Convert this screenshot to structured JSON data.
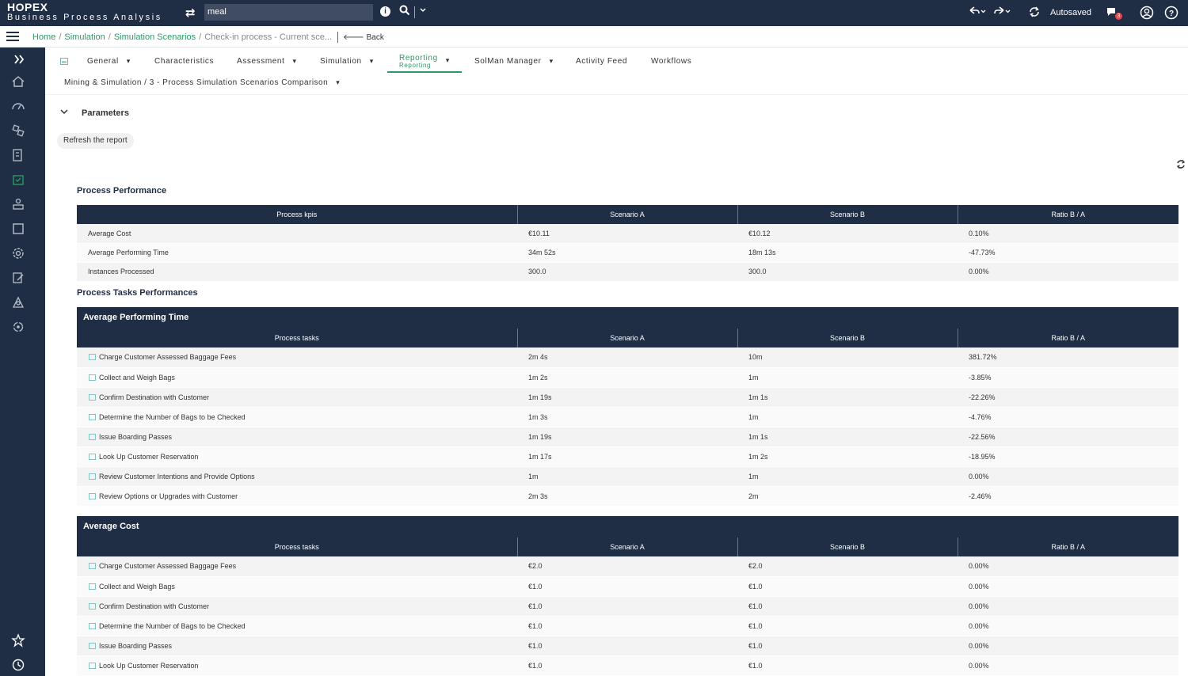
{
  "brand": {
    "name": "HOPEX",
    "subtitle": "Business Process Analysis"
  },
  "topbar": {
    "search_value": "meal",
    "autosaved": "Autosaved",
    "notification_count": "3"
  },
  "breadcrumb": {
    "items": [
      "Home",
      "Simulation",
      "Simulation Scenarios"
    ],
    "current": "Check-in process - Current sce...",
    "back_label": "Back"
  },
  "tabs": {
    "general": "General",
    "characteristics": "Characteristics",
    "assessment": "Assessment",
    "simulation": "Simulation",
    "reporting": "Reporting",
    "reporting_sub": "Reporting",
    "solman": "SolMan Manager",
    "activity": "Activity Feed",
    "workflows": "Workflows"
  },
  "subtab": "Mining & Simulation / 3 - Process Simulation Scenarios Comparison",
  "parameters": {
    "title": "Parameters",
    "refresh_label": "Refresh the report"
  },
  "process_performance": {
    "title": "Process Performance",
    "headers": [
      "Process kpis",
      "Scenario A",
      "Scenario B",
      "Ratio B / A"
    ],
    "rows": [
      [
        "Average Cost",
        "€10.11",
        "€10.12",
        "0.10%"
      ],
      [
        "Average Performing Time",
        "34m 52s",
        "18m 13s",
        "-47.73%"
      ],
      [
        "Instances Processed",
        "300.0",
        "300.0",
        "0.00%"
      ]
    ]
  },
  "tasks_performances": {
    "title": "Process Tasks Performances",
    "time_group": {
      "title": "Average Performing Time",
      "headers": [
        "Process tasks",
        "Scenario A",
        "Scenario B",
        "Ratio B / A"
      ],
      "rows": [
        [
          "Charge Customer Assessed Baggage Fees",
          "2m 4s",
          "10m",
          "381.72%"
        ],
        [
          "Collect and Weigh Bags",
          "1m 2s",
          "1m",
          "-3.85%"
        ],
        [
          "Confirm Destination with Customer",
          "1m 19s",
          "1m 1s",
          "-22.26%"
        ],
        [
          "Determine the Number of Bags to be Checked",
          "1m 3s",
          "1m",
          "-4.76%"
        ],
        [
          "Issue Boarding Passes",
          "1m 19s",
          "1m 1s",
          "-22.56%"
        ],
        [
          "Look Up Customer Reservation",
          "1m 17s",
          "1m 2s",
          "-18.95%"
        ],
        [
          "Review Customer Intentions and Provide Options",
          "1m",
          "1m",
          "0.00%"
        ],
        [
          "Review Options or Upgrades with Customer",
          "2m 3s",
          "2m",
          "-2.46%"
        ]
      ]
    },
    "cost_group": {
      "title": "Average Cost",
      "headers": [
        "Process tasks",
        "Scenario A",
        "Scenario B",
        "Ratio B / A"
      ],
      "rows": [
        [
          "Charge Customer Assessed Baggage Fees",
          "€2.0",
          "€2.0",
          "0.00%"
        ],
        [
          "Collect and Weigh Bags",
          "€1.0",
          "€1.0",
          "0.00%"
        ],
        [
          "Confirm Destination with Customer",
          "€1.0",
          "€1.0",
          "0.00%"
        ],
        [
          "Determine the Number of Bags to be Checked",
          "€1.0",
          "€1.0",
          "0.00%"
        ],
        [
          "Issue Boarding Passes",
          "€1.0",
          "€1.0",
          "0.00%"
        ],
        [
          "Look Up Customer Reservation",
          "€1.0",
          "€1.0",
          "0.00%"
        ]
      ]
    }
  },
  "sidebar_icons": [
    "expand-icon",
    "home-icon",
    "dashboard-icon",
    "objects-icon",
    "library-icon",
    "simulation-icon",
    "org-icon",
    "diagram-icon",
    "settings-icon",
    "report-edit-icon",
    "users-icon",
    "sync-icon",
    "favorites-icon",
    "history-icon"
  ],
  "colors": {
    "header_bg": "#1f2d45",
    "accent": "#2b9a63",
    "badge": "#e04a4a"
  }
}
